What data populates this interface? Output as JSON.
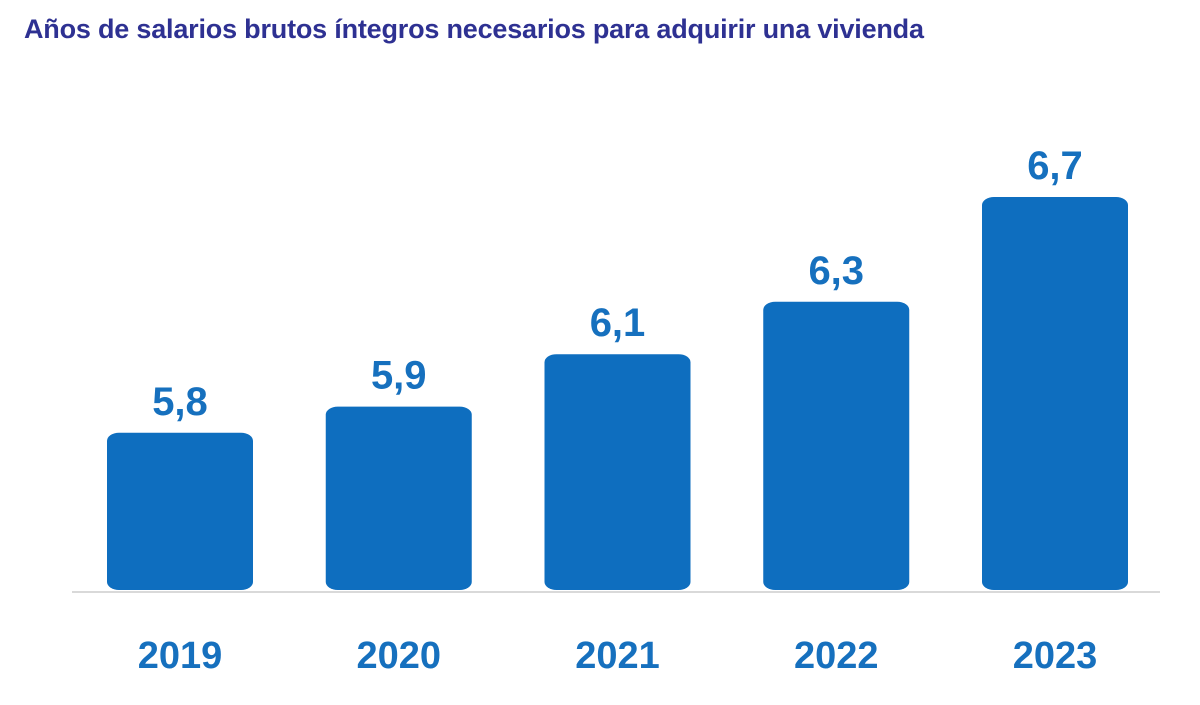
{
  "chart_data": {
    "type": "bar",
    "title": "Años de salarios brutos íntegros necesarios para adquirir una vivienda",
    "categories": [
      "2019",
      "2020",
      "2021",
      "2022",
      "2023"
    ],
    "values": [
      5.8,
      5.9,
      6.1,
      6.3,
      6.7
    ],
    "data_labels": [
      "5,8",
      "5,9",
      "6,1",
      "6,3",
      "6,7"
    ],
    "xlabel": "",
    "ylabel": "",
    "grid": false,
    "colors": {
      "bar": "#0E6EBF",
      "title": "#2E3192",
      "labels": "#1670BE",
      "axis": "#D9D9D9"
    }
  }
}
